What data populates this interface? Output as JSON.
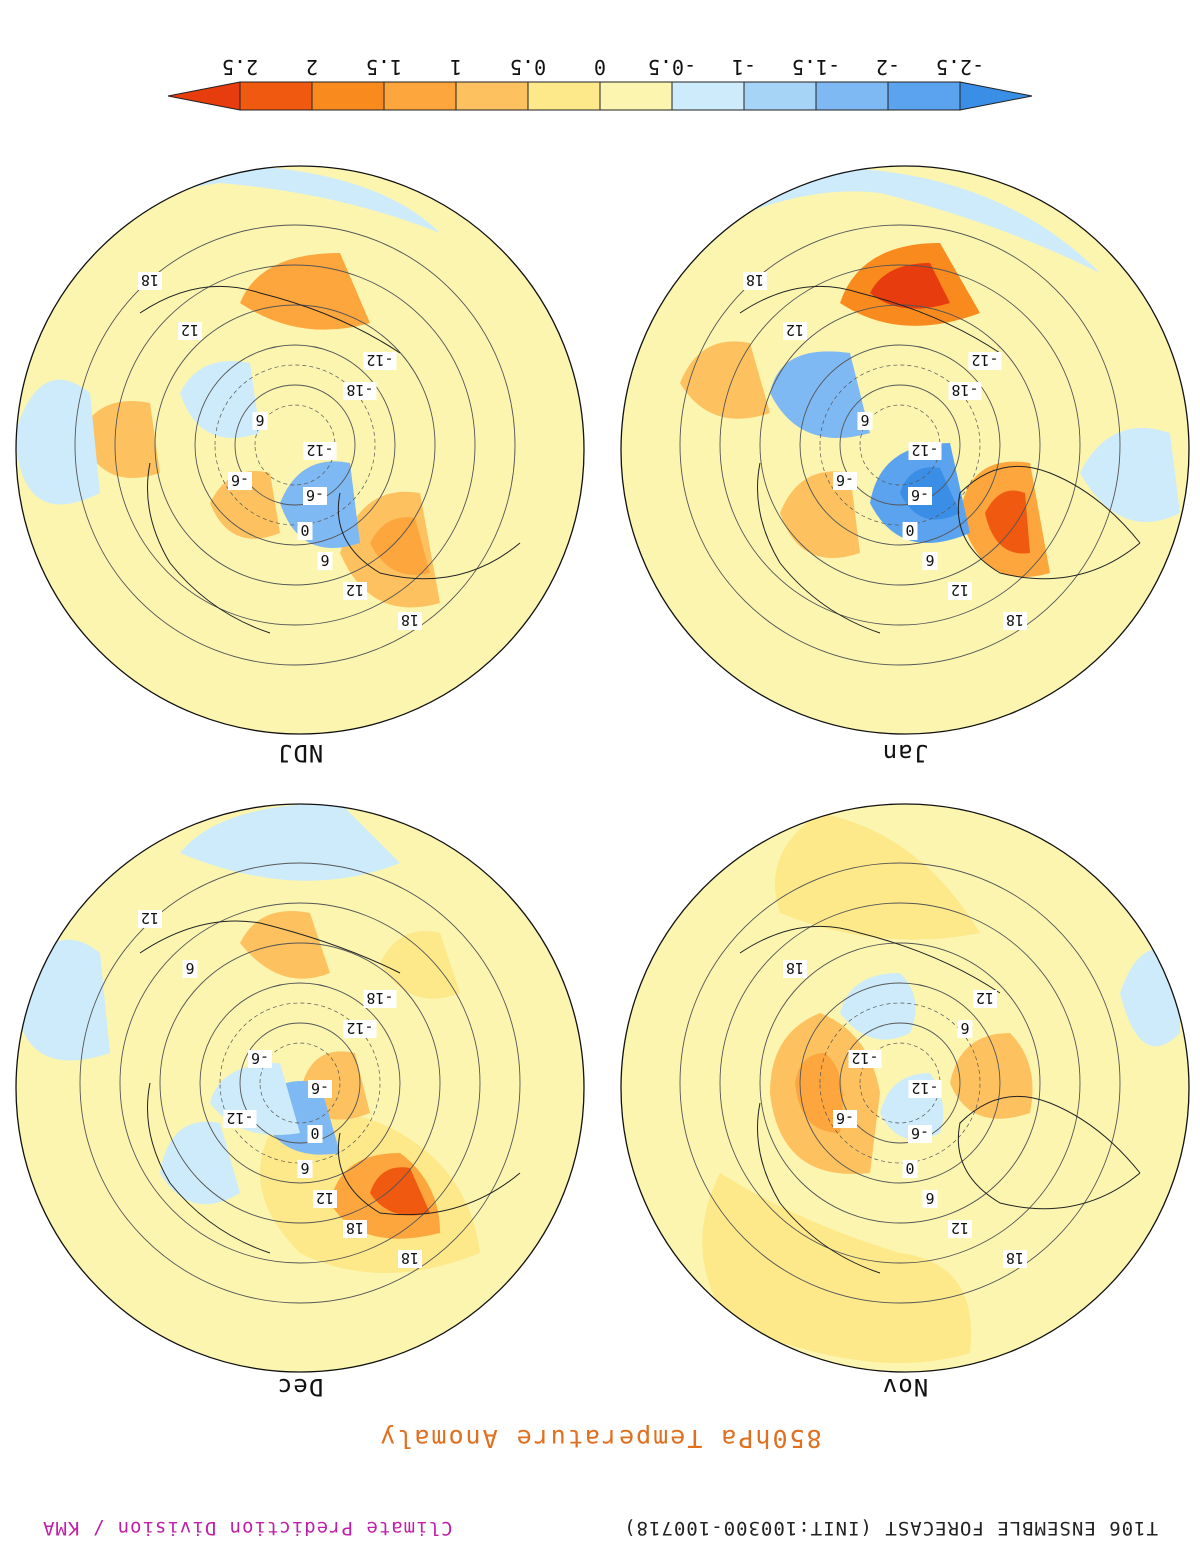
{
  "header": {
    "left_text": "T106 ENSEMBLE FORECAST (INIT:100300-100718)",
    "right_text": "Climate Prediction Division / KMA"
  },
  "title": "850hPa Temperature Anomaly",
  "panels": [
    {
      "label": "Nov",
      "contour_labels": [
        "18",
        "12",
        "6",
        "0",
        "-6",
        "-12",
        "6",
        "12",
        "-6",
        "-12",
        "18"
      ]
    },
    {
      "label": "Dec",
      "contour_labels": [
        "18",
        "18",
        "12",
        "6",
        "0",
        "-6",
        "-12",
        "-18",
        "-12",
        "-6",
        "6",
        "12"
      ]
    },
    {
      "label": "Jan",
      "contour_labels": [
        "18",
        "12",
        "6",
        "0",
        "-6",
        "-12",
        "-18",
        "-12",
        "-6",
        "6",
        "12",
        "18"
      ]
    },
    {
      "label": "NDJ",
      "contour_labels": [
        "18",
        "12",
        "6",
        "0",
        "-6",
        "-12",
        "-18",
        "-12",
        "-6",
        "6",
        "12",
        "18"
      ]
    }
  ],
  "colorbar": {
    "labels": [
      "-2.5",
      "-2",
      "-1.5",
      "-1",
      "-0.5",
      "0",
      "0.5",
      "1",
      "1.5",
      "2",
      "2.5"
    ],
    "colors": [
      "#3a8ee6",
      "#5ba3ee",
      "#7fb9f3",
      "#a6d4f7",
      "#cdebfa",
      "#fbf5b0",
      "#fde88a",
      "#fdc25f",
      "#fca63d",
      "#f98a1e",
      "#f05a10",
      "#e63c0e"
    ]
  }
}
